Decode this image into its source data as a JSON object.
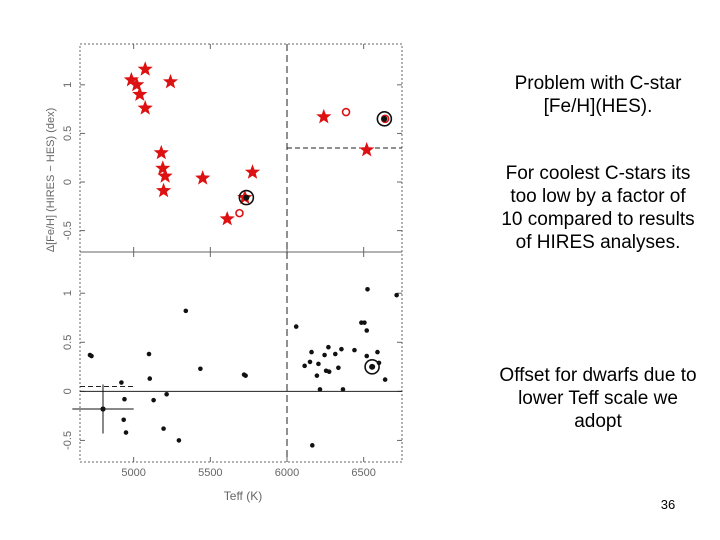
{
  "text": {
    "paragraph1": "Problem with C-star [Fe/H](HES).",
    "paragraph2": "For coolest C-stars its too low by a factor of 10 compared to results of HIRES analyses.",
    "paragraph3": "Offset for dwarfs due to lower Teff scale we adopt",
    "slide_number": "36"
  },
  "chart_data": {
    "type": "scatter",
    "xlabel": "Teff (K)",
    "ylabel": "Δ[Fe/H] (HIRES − HES) (dex)",
    "xlim": [
      4650,
      6750
    ],
    "x_ticks": [
      "5000",
      "5500",
      "6000",
      "6500"
    ],
    "x_tick_values": [
      5000,
      5500,
      6000,
      6500
    ],
    "colors": {
      "red": "#dd1111",
      "black": "#111111",
      "frame": "#666666"
    },
    "panels": [
      {
        "position": "top",
        "ylim": [
          -0.72,
          1.42
        ],
        "y_ticks": [
          "-0.5",
          "0",
          "0.5",
          "1"
        ],
        "y_tick_values": [
          -0.5,
          0,
          0.5,
          1
        ],
        "vline_x": 6000,
        "offset_line": {
          "x": [
            6000,
            6750
          ],
          "y": 0.35
        },
        "stars": [
          {
            "x": 4985,
            "y": 1.05
          },
          {
            "x": 5020,
            "y": 1.0
          },
          {
            "x": 5040,
            "y": 0.9
          },
          {
            "x": 5075,
            "y": 1.16
          },
          {
            "x": 5240,
            "y": 1.03
          },
          {
            "x": 5075,
            "y": 0.76
          },
          {
            "x": 5180,
            "y": 0.3
          },
          {
            "x": 5190,
            "y": 0.14
          },
          {
            "x": 5205,
            "y": 0.06
          },
          {
            "x": 5195,
            "y": -0.09
          },
          {
            "x": 5450,
            "y": 0.04
          },
          {
            "x": 5775,
            "y": 0.1
          },
          {
            "x": 5725,
            "y": -0.16
          },
          {
            "x": 5610,
            "y": -0.38
          },
          {
            "x": 6240,
            "y": 0.67
          },
          {
            "x": 6520,
            "y": 0.33
          }
        ],
        "open_circles": [
          {
            "x": 5690,
            "y": -0.32
          },
          {
            "x": 6385,
            "y": 0.72
          },
          {
            "x": 6640,
            "y": 0.65
          }
        ],
        "ringed_points": [
          {
            "x": 5735,
            "y": -0.16
          },
          {
            "x": 6635,
            "y": 0.65
          }
        ]
      },
      {
        "position": "bottom",
        "ylim": [
          -0.72,
          1.42
        ],
        "y_ticks": [
          "-0.5",
          "0",
          "0.5",
          "1"
        ],
        "y_tick_values": [
          -0.5,
          0,
          0.5,
          1
        ],
        "vline_x": 6000,
        "zero_line": true,
        "offset_line": {
          "x": [
            4650,
            5000
          ],
          "y": 0.05
        },
        "dots": [
          {
            "x": 4715,
            "y": 0.37
          },
          {
            "x": 4725,
            "y": 0.36
          },
          {
            "x": 4920,
            "y": 0.09
          },
          {
            "x": 4940,
            "y": -0.08
          },
          {
            "x": 4935,
            "y": -0.29
          },
          {
            "x": 4950,
            "y": -0.42
          },
          {
            "x": 5100,
            "y": 0.38
          },
          {
            "x": 5105,
            "y": 0.13
          },
          {
            "x": 5130,
            "y": -0.09
          },
          {
            "x": 5195,
            "y": -0.38
          },
          {
            "x": 5215,
            "y": -0.03
          },
          {
            "x": 5295,
            "y": -0.5
          },
          {
            "x": 5340,
            "y": 0.82
          },
          {
            "x": 5435,
            "y": 0.23
          },
          {
            "x": 5720,
            "y": 0.17
          },
          {
            "x": 5730,
            "y": 0.16
          },
          {
            "x": 6060,
            "y": 0.66
          },
          {
            "x": 6115,
            "y": 0.26
          },
          {
            "x": 6150,
            "y": 0.3
          },
          {
            "x": 6160,
            "y": 0.4
          },
          {
            "x": 6165,
            "y": -0.55
          },
          {
            "x": 6195,
            "y": 0.16
          },
          {
            "x": 6205,
            "y": 0.28
          },
          {
            "x": 6215,
            "y": 0.02
          },
          {
            "x": 6245,
            "y": 0.37
          },
          {
            "x": 6255,
            "y": 0.21
          },
          {
            "x": 6270,
            "y": 0.45
          },
          {
            "x": 6275,
            "y": 0.2
          },
          {
            "x": 6315,
            "y": 0.38
          },
          {
            "x": 6335,
            "y": 0.24
          },
          {
            "x": 6355,
            "y": 0.43
          },
          {
            "x": 6365,
            "y": 0.02
          },
          {
            "x": 6440,
            "y": 0.42
          },
          {
            "x": 6485,
            "y": 0.7
          },
          {
            "x": 6505,
            "y": 0.7
          },
          {
            "x": 6520,
            "y": 0.36
          },
          {
            "x": 6520,
            "y": 0.62
          },
          {
            "x": 6525,
            "y": 1.04
          },
          {
            "x": 6560,
            "y": 0.25
          },
          {
            "x": 6590,
            "y": 0.4
          },
          {
            "x": 6600,
            "y": 0.29
          },
          {
            "x": 6640,
            "y": 0.12
          },
          {
            "x": 6715,
            "y": 0.98
          }
        ],
        "ringed_points": [
          {
            "x": 6555,
            "y": 0.25
          }
        ],
        "error_bar_point": {
          "x": 4800,
          "y": -0.18,
          "x_err": 200,
          "y_err": 0.25
        }
      }
    ]
  }
}
